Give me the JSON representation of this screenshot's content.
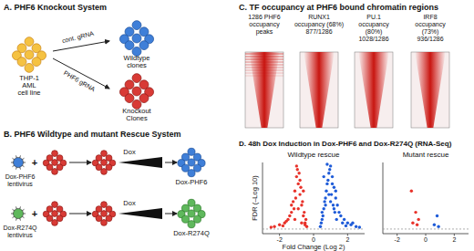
{
  "panel_a": {
    "title": "A. PHF6 Knockout System",
    "source_lines": [
      "THP-1",
      "AML",
      "cell line"
    ],
    "arrows": [
      {
        "label": "cont. gRNA",
        "target_lines": [
          "Wildtype",
          "clones"
        ]
      },
      {
        "label": "PHF6 gRNA",
        "target_lines": [
          "Knockout",
          "Clones"
        ]
      }
    ]
  },
  "panel_b": {
    "title": "B. PHF6 Wildtype and mutant Rescue System",
    "rows": [
      {
        "virus_lines": [
          "Dox-PHF6",
          "lentivirus"
        ],
        "join": "+",
        "inducer": "Dox",
        "result": "Dox-PHF6"
      },
      {
        "virus_lines": [
          "Dox-R274Q",
          "lentivirus"
        ],
        "join": "+",
        "inducer": "Dox",
        "result": "Dox-R274Q"
      }
    ]
  },
  "panel_c": {
    "title": "C. TF occupancy at PHF6 bound chromatin regions",
    "heatmaps": [
      {
        "label_lines": [
          "1286 PHF6",
          "occupancy",
          "peaks"
        ]
      },
      {
        "label_lines": [
          "RUNX1",
          "occupancy (68%)",
          "877/1286"
        ]
      },
      {
        "label_lines": [
          "PU.1",
          "occupancy",
          "(80%)",
          "1028/1286"
        ]
      },
      {
        "label_lines": [
          "IRF8",
          "occupancy",
          "(73%)",
          "936/1286"
        ]
      }
    ]
  },
  "panel_d": {
    "title": "D. 48h Dox Induction in Dox-PHF6 and Dox-R274Q (RNA-Seq)"
  },
  "chart_data": [
    {
      "type": "scatter",
      "title": "Wildtype rescue",
      "x_label": "Fold Change (Log 2)",
      "y_label": "FDR (–Log 10)",
      "xlim": [
        -3,
        3
      ],
      "ylim": [
        0,
        20
      ],
      "xticks": [
        -2,
        0,
        2
      ],
      "tick_labels": "x",
      "threshold": 1.3,
      "series": [
        {
          "color": "#e8322a",
          "x": [
            -0.4,
            -0.5,
            -0.6,
            -0.7,
            -0.8,
            -0.9,
            -1.0,
            -1.1,
            -1.2,
            -1.3,
            -1.5,
            -1.7,
            -2.0,
            -2.3,
            -0.45,
            -0.55,
            -0.65,
            -0.75,
            -0.85,
            -0.95,
            -1.05,
            -1.15,
            -1.4,
            -1.6,
            -0.5,
            -0.7,
            -0.9,
            -1.1,
            -0.6,
            -0.8,
            -1.0,
            -1.3,
            -1.8,
            -2.5
          ],
          "values": [
            2,
            3,
            5,
            8,
            11,
            14,
            16,
            12,
            9,
            6,
            4,
            3,
            2.5,
            2,
            4,
            6,
            9,
            13,
            17,
            18,
            10,
            7,
            5,
            3.5,
            2.5,
            3,
            7,
            4,
            12,
            15,
            19,
            8,
            2.2,
            1.8
          ]
        },
        {
          "color": "#1e5bd8",
          "x": [
            0.4,
            0.5,
            0.6,
            0.7,
            0.8,
            0.9,
            1.0,
            1.1,
            1.2,
            1.3,
            1.4,
            1.5,
            1.6,
            1.8,
            2.0,
            2.2,
            2.5,
            0.45,
            0.55,
            0.65,
            0.75,
            0.85,
            0.95,
            1.05,
            1.15,
            1.25,
            1.35,
            1.7,
            1.9,
            0.5,
            0.7,
            0.9,
            1.1,
            1.3,
            0.6,
            0.8,
            1.0,
            1.2,
            2.3,
            2.7
          ],
          "values": [
            2,
            4,
            7,
            10,
            14,
            17,
            19,
            16,
            13,
            10,
            8,
            6,
            5,
            4,
            3,
            2.5,
            2,
            3,
            5,
            9,
            12,
            15,
            18,
            11,
            8,
            6,
            4,
            3,
            2.2,
            6,
            8,
            11,
            14,
            12,
            16,
            19.5,
            9,
            7,
            3,
            1.8
          ]
        }
      ]
    },
    {
      "type": "scatter",
      "title": "Mutant rescue",
      "xlim": [
        -3,
        3
      ],
      "ylim": [
        0,
        20
      ],
      "xticks": [
        -2,
        0,
        2
      ],
      "tick_labels": "x",
      "threshold": 1.3,
      "series": [
        {
          "color": "#e8322a",
          "x": [
            -1.0,
            -0.7,
            -0.5,
            -0.6,
            -0.9
          ],
          "values": [
            12,
            6,
            4,
            2.5,
            3
          ]
        },
        {
          "color": "#1e5bd8",
          "x": [
            0.8,
            0.6,
            0.9
          ],
          "values": [
            5,
            2.5,
            2
          ]
        }
      ]
    }
  ]
}
